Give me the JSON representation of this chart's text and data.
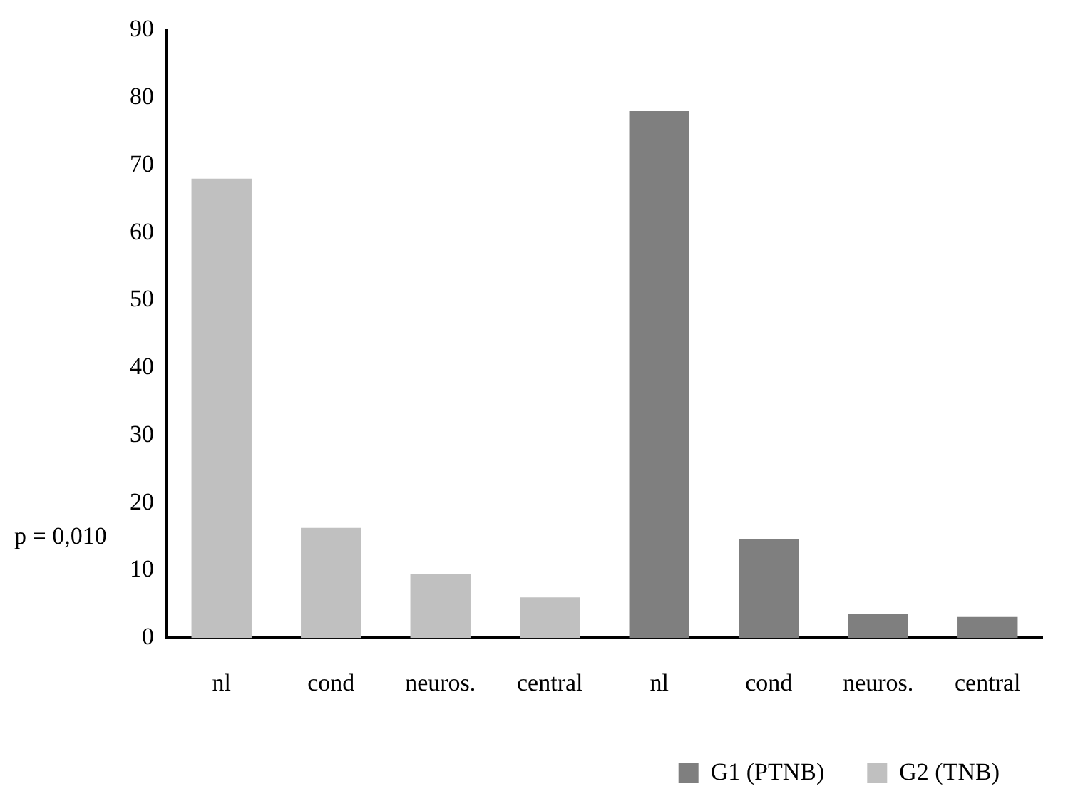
{
  "chart_data": {
    "type": "bar",
    "categories": [
      "nl",
      "cond",
      "neuros.",
      "central",
      "nl",
      "cond",
      "neuros.",
      "central"
    ],
    "series": [
      {
        "name": "G1 (PTNB)",
        "color": "#7f7f7f",
        "values": [
          null,
          null,
          null,
          null,
          78,
          14.7,
          3.5,
          3.1
        ]
      },
      {
        "name": "G2 (TNB)",
        "color": "#c0c0c0",
        "values": [
          68,
          16.3,
          9.5,
          6,
          null,
          null,
          null,
          null
        ]
      }
    ],
    "ylim": [
      0,
      90
    ],
    "yticks": [
      0,
      10,
      20,
      30,
      40,
      50,
      60,
      70,
      80,
      90
    ],
    "grid": false,
    "legend": "bottom right",
    "annotations": [
      "p = 0,010"
    ]
  }
}
